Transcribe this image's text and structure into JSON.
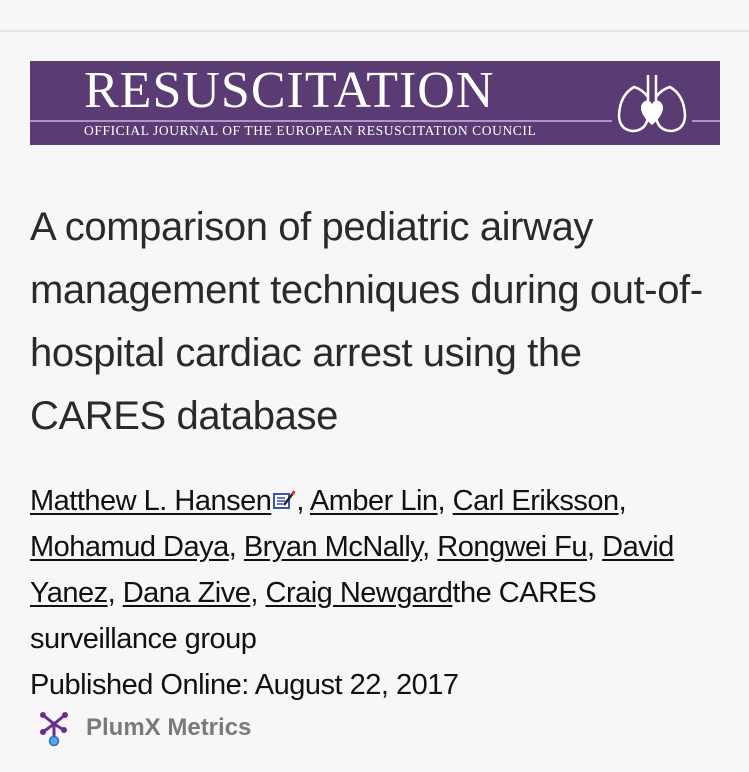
{
  "journal": {
    "name": "RESUSCITATION",
    "subtitle": "OFFICIAL JOURNAL OF THE EUROPEAN RESUSCITATION COUNCIL",
    "banner_color": "#5b3b73",
    "logo_icon": "lungs-heart-logo"
  },
  "article": {
    "title": "A comparison of pediatric airway management techniques during out-of-hospital cardiac arrest using the CARES database",
    "authors": [
      {
        "name": "Matthew L. Hansen",
        "sep": ", "
      },
      {
        "name": "Amber Lin",
        "sep": ", "
      },
      {
        "name": "Carl Eriksson",
        "sep": ", "
      },
      {
        "name": "Mohamud Daya",
        "sep": ", "
      },
      {
        "name": "Bryan McNally",
        "sep": ", "
      },
      {
        "name": "Rongwei Fu",
        "sep": ", "
      },
      {
        "name": "David Yanez",
        "sep": ", "
      },
      {
        "name": "Dana Zive",
        "sep": ", "
      },
      {
        "name": "Craig Newgard",
        "sep": ""
      }
    ],
    "group": "the CARES surveillance group",
    "published": "Published Online: August 22, 2017"
  },
  "metrics": {
    "label": "PlumX Metrics",
    "icon": "plumx-icon"
  }
}
